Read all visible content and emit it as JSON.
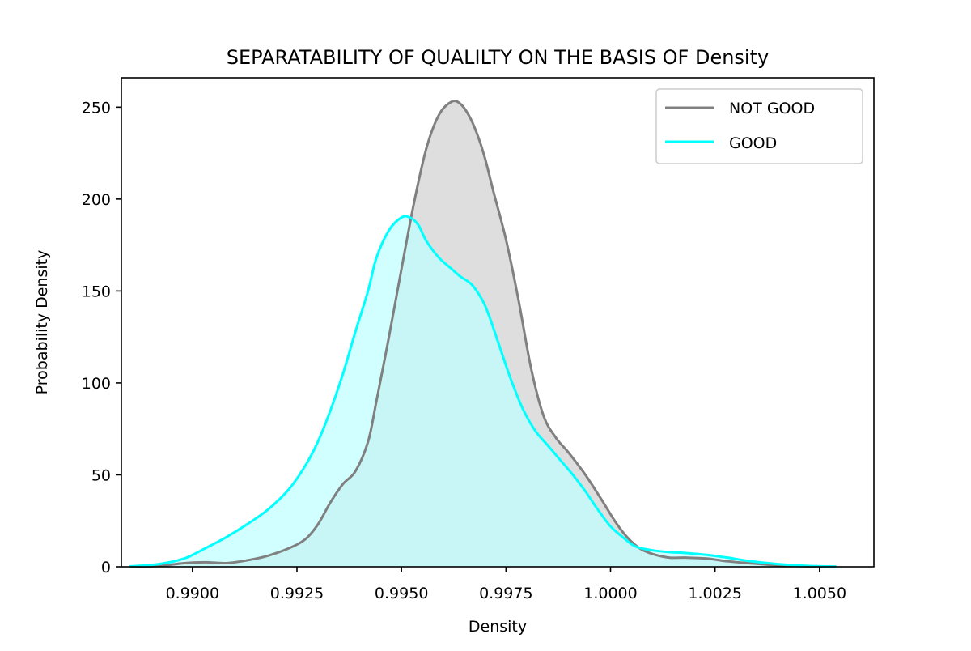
{
  "chart_data": {
    "type": "area",
    "title": "SEPARATABILITY OF QUALILTY ON THE BASIS OF Density",
    "xlabel": "Density",
    "ylabel": "Probability Density",
    "xlim": [
      0.9883,
      1.0063
    ],
    "ylim": [
      0,
      266
    ],
    "x_ticks": [
      0.99,
      0.9925,
      0.995,
      0.9975,
      1.0,
      1.0025,
      1.005
    ],
    "x_tick_labels": [
      "0.9900",
      "0.9925",
      "0.9950",
      "0.9975",
      "1.0000",
      "1.0025",
      "1.0050"
    ],
    "y_ticks": [
      0,
      50,
      100,
      150,
      200,
      250
    ],
    "y_tick_labels": [
      "0",
      "50",
      "100",
      "150",
      "200",
      "250"
    ],
    "grid": false,
    "legend_position": "top-right",
    "series": [
      {
        "name": "NOT GOOD",
        "color": "#808080",
        "fill": "#dedede",
        "x": [
          0.9885,
          0.9892,
          0.9898,
          0.9903,
          0.9908,
          0.9913,
          0.9918,
          0.9923,
          0.9927,
          0.993,
          0.9933,
          0.9936,
          0.9939,
          0.9942,
          0.9944,
          0.9947,
          0.995,
          0.9953,
          0.9956,
          0.9959,
          0.9962,
          0.9964,
          0.9966,
          0.9968,
          0.997,
          0.9972,
          0.9975,
          0.9978,
          0.9981,
          0.9984,
          0.9987,
          0.999,
          0.9994,
          0.9998,
          1.0001,
          1.0004,
          1.0007,
          1.001,
          1.0014,
          1.0018,
          1.0023,
          1.0028,
          1.0033,
          1.004,
          1.0047,
          1.0054
        ],
        "y": [
          0.1,
          0.5,
          2.0,
          2.5,
          2.0,
          3.5,
          6.0,
          10.0,
          15.0,
          23.0,
          35.0,
          45.0,
          52.0,
          68.0,
          90.0,
          125.0,
          162.0,
          198.0,
          228.0,
          246.0,
          253.0,
          252.0,
          246.0,
          236.0,
          222.0,
          204.0,
          178.0,
          145.0,
          108.0,
          82.0,
          70.0,
          62.0,
          50.0,
          36.0,
          25.0,
          16.0,
          10.0,
          7.0,
          5.0,
          5.0,
          4.5,
          3.0,
          2.0,
          0.8,
          0.3,
          0.1
        ]
      },
      {
        "name": "GOOD",
        "color": "#00ffff",
        "fill": "#bfffff",
        "x": [
          0.9885,
          0.9892,
          0.9898,
          0.9903,
          0.9908,
          0.9913,
          0.9918,
          0.9923,
          0.9927,
          0.993,
          0.9933,
          0.9936,
          0.9939,
          0.9942,
          0.9944,
          0.9947,
          0.995,
          0.9952,
          0.9954,
          0.9956,
          0.9959,
          0.9962,
          0.9964,
          0.9967,
          0.997,
          0.9973,
          0.9976,
          0.9979,
          0.9982,
          0.9985,
          0.9988,
          0.9991,
          0.9994,
          0.9997,
          1.0,
          1.0003,
          1.0006,
          1.001,
          1.0014,
          1.0018,
          1.0023,
          1.0028,
          1.0033,
          1.004,
          1.0047,
          1.0054
        ],
        "y": [
          0.2,
          1.5,
          4.5,
          10.0,
          16.0,
          23.0,
          31.0,
          42.0,
          55.0,
          68.0,
          85.0,
          105.0,
          128.0,
          150.0,
          168.0,
          183.0,
          190.0,
          190.0,
          186.0,
          177.0,
          168.0,
          162.0,
          158.0,
          153.0,
          142.0,
          123.0,
          103.0,
          86.0,
          74.0,
          66.0,
          58.0,
          50.0,
          41.0,
          31.0,
          22.0,
          16.0,
          11.0,
          9.0,
          8.0,
          7.5,
          6.5,
          5.0,
          3.2,
          1.5,
          0.5,
          0.1
        ]
      }
    ]
  }
}
